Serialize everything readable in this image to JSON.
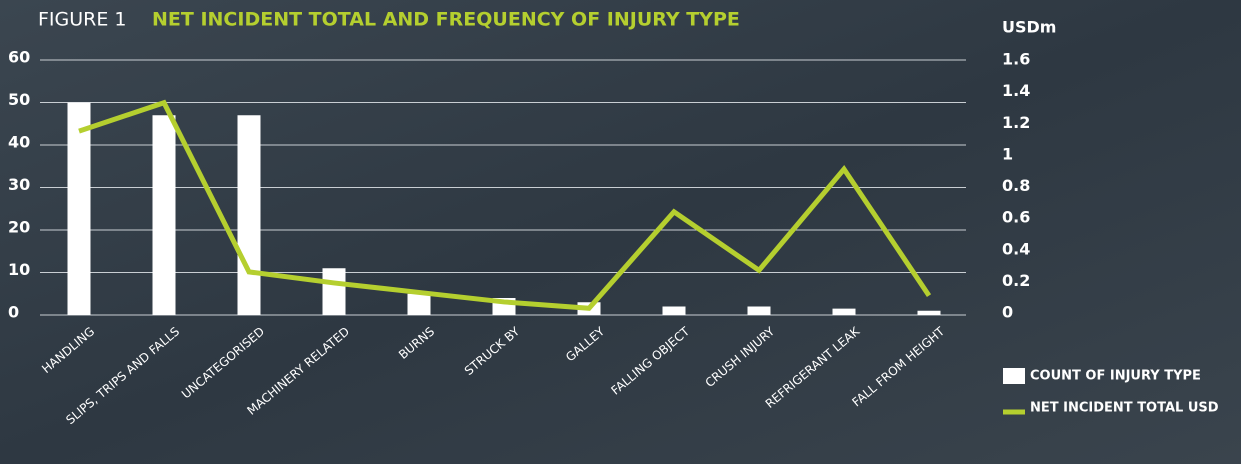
{
  "chart_data": {
    "type": "bar_line",
    "figure_label": "FIGURE 1",
    "title": "NET INCIDENT TOTAL AND FREQUENCY OF INJURY TYPE",
    "y2_label": "USDm",
    "categories": [
      "HANDLING",
      "SLIPS, TRIPS AND FALLS",
      "UNCATEGORISED",
      "MACHINERY RELATED",
      "BURNS",
      "STRUCK BY",
      "GALLEY",
      "FALLING OBJECT",
      "CRUSH INJURY",
      "REFRIGERANT LEAK",
      "FALL FROM HEIGHT"
    ],
    "series": [
      {
        "name": "COUNT OF INJURY TYPE",
        "type": "bar",
        "color": "#ffffff",
        "values": [
          50,
          47,
          47,
          11,
          5,
          4,
          3,
          2,
          2,
          1.5,
          1
        ]
      },
      {
        "name": "NET INCIDENT TOTAL USD",
        "type": "line",
        "axis": "y2",
        "color": "#b5cf2f",
        "values": [
          1.15,
          1.33,
          0.26,
          0.19,
          0.13,
          0.07,
          0.03,
          0.64,
          0.27,
          0.91,
          0.11
        ]
      }
    ],
    "ylim": [
      0,
      60
    ],
    "yticks": [
      0,
      10,
      20,
      30,
      40,
      50,
      60
    ],
    "y2lim": [
      0,
      1.6
    ],
    "y2ticks": [
      0,
      0.2,
      0.4,
      0.6,
      0.8,
      1,
      1.2,
      1.4,
      1.6
    ],
    "grid": true,
    "legend": "bottom-right"
  }
}
